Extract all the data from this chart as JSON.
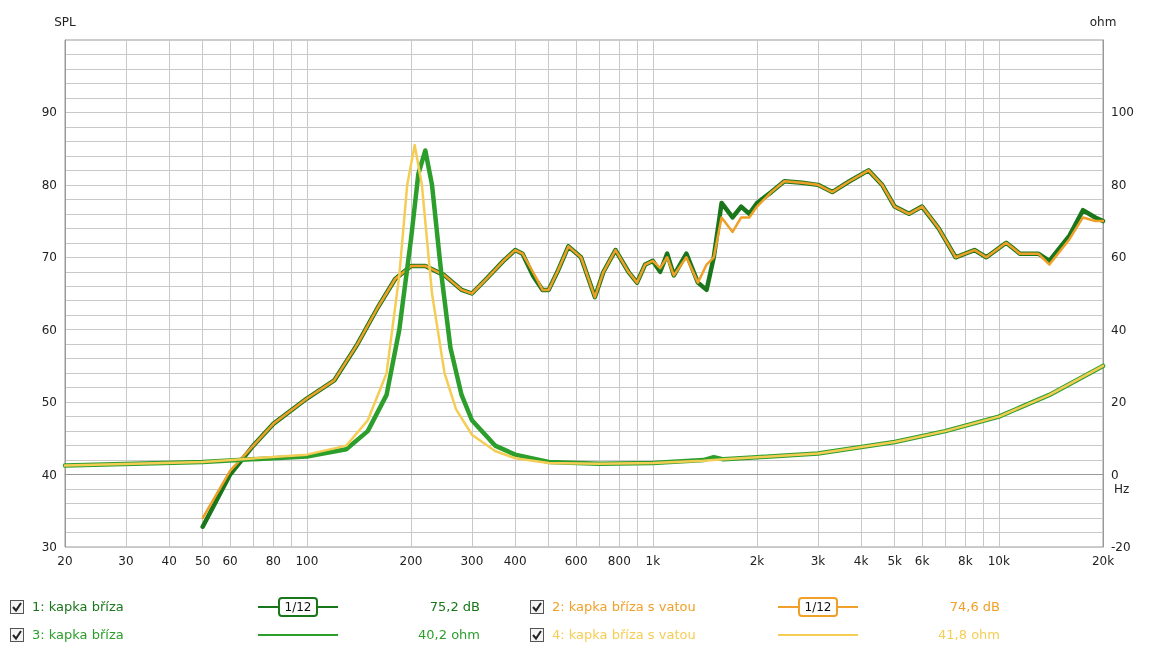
{
  "chart_data": {
    "type": "line",
    "xlabel": "Hz",
    "ylabel": "SPL",
    "y2label": "ohm",
    "xlim": [
      20,
      20000
    ],
    "xticks": [
      20,
      30,
      40,
      50,
      60,
      {
        "value": 70,
        "label": null
      },
      80,
      {
        "value": 90,
        "label": null
      },
      100,
      200,
      300,
      400,
      {
        "value": 500,
        "label": null
      },
      600,
      {
        "value": 700,
        "label": null
      },
      800,
      {
        "value": 900,
        "label": null
      },
      {
        "value": 1000,
        "label": "1k"
      },
      {
        "value": 2000,
        "label": "2k"
      },
      {
        "value": 3000,
        "label": "3k"
      },
      {
        "value": 4000,
        "label": "4k"
      },
      {
        "value": 5000,
        "label": "5k"
      },
      {
        "value": 6000,
        "label": "6k"
      },
      {
        "value": 7000,
        "label": null
      },
      {
        "value": 8000,
        "label": "8k"
      },
      {
        "value": 9000,
        "label": null
      },
      {
        "value": 10000,
        "label": "10k"
      },
      {
        "value": 20000,
        "label": "20k"
      }
    ],
    "ylim": [
      30,
      100
    ],
    "yticks": [
      30,
      {
        "value": 32,
        "label": null
      },
      {
        "value": 34,
        "label": null
      },
      {
        "value": 36,
        "label": null
      },
      {
        "value": 38,
        "label": null
      },
      40,
      {
        "value": 42,
        "label": null
      },
      {
        "value": 44,
        "label": null
      },
      {
        "value": 46,
        "label": null
      },
      {
        "value": 48,
        "label": null
      },
      50,
      {
        "value": 52,
        "label": null
      },
      {
        "value": 54,
        "label": null
      },
      {
        "value": 56,
        "label": null
      },
      {
        "value": 58,
        "label": null
      },
      60,
      {
        "value": 62,
        "label": null
      },
      {
        "value": 64,
        "label": null
      },
      {
        "value": 66,
        "label": null
      },
      {
        "value": 68,
        "label": null
      },
      70,
      {
        "value": 72,
        "label": null
      },
      {
        "value": 74,
        "label": null
      },
      {
        "value": 76,
        "label": null
      },
      {
        "value": 78,
        "label": null
      },
      80,
      {
        "value": 82,
        "label": null
      },
      {
        "value": 84,
        "label": null
      },
      {
        "value": 86,
        "label": null
      },
      {
        "value": 88,
        "label": null
      },
      90,
      {
        "value": 92,
        "label": null
      },
      {
        "value": 94,
        "label": null
      },
      {
        "value": 96,
        "label": null
      },
      {
        "value": 98,
        "label": null
      }
    ],
    "y2lim": [
      -20,
      120
    ],
    "y2ticks": [
      -20,
      0,
      20,
      40,
      60,
      80,
      100
    ],
    "log": "x",
    "grid": true,
    "marker": "none",
    "line_style": "solid",
    "legend": "bottom",
    "annotations": [
      "1/12",
      "75,2 dB",
      "1/12",
      "74,6 dB",
      "40,2 ohm",
      "41,8 ohm"
    ],
    "series": [
      {
        "name": "1: kapka bříza",
        "color": "#1a761a",
        "x": [
          50,
          60,
          70,
          80,
          100,
          120,
          140,
          160,
          180,
          200,
          220,
          250,
          280,
          300,
          330,
          370,
          400,
          420,
          450,
          480,
          500,
          530,
          570,
          620,
          680,
          720,
          780,
          850,
          900,
          950,
          1000,
          1050,
          1100,
          1150,
          1250,
          1350,
          1430,
          1500,
          1580,
          1700,
          1800,
          1900,
          2000,
          2200,
          2400,
          2700,
          3000,
          3300,
          3700,
          4200,
          4600,
          5000,
          5500,
          6000,
          6700,
          7500,
          8500,
          9200,
          10500,
          11500,
          13000,
          14000,
          16000,
          17500,
          19000,
          20000
        ],
        "values": [
          32.8,
          40,
          44,
          47,
          50.5,
          53,
          58,
          63,
          67,
          68.8,
          68.8,
          67.5,
          65.5,
          65,
          67,
          69.5,
          71,
          70.5,
          67.5,
          65.5,
          65.5,
          68,
          71.5,
          70,
          64.5,
          68,
          71,
          68,
          66.5,
          69,
          69.5,
          68,
          70.5,
          67.5,
          70.5,
          66.5,
          65.5,
          70,
          77.5,
          75.5,
          77,
          76,
          77.5,
          79,
          80.5,
          80.3,
          80,
          79,
          80.5,
          82,
          80,
          77,
          76,
          77,
          74,
          70,
          71,
          70,
          72,
          70.5,
          70.5,
          69.5,
          73,
          76.5,
          75.5,
          75
        ]
      },
      {
        "name": "2: kapka bříza s vatou",
        "color": "#f0a028",
        "x": [
          50,
          60,
          70,
          80,
          100,
          120,
          140,
          160,
          180,
          200,
          220,
          250,
          280,
          300,
          330,
          370,
          400,
          420,
          450,
          480,
          500,
          530,
          570,
          620,
          680,
          720,
          780,
          850,
          900,
          950,
          1000,
          1050,
          1100,
          1150,
          1250,
          1350,
          1430,
          1500,
          1580,
          1700,
          1800,
          1900,
          2000,
          2200,
          2400,
          2700,
          3000,
          3300,
          3700,
          4200,
          4600,
          5000,
          5500,
          6000,
          6700,
          7500,
          8500,
          9200,
          10500,
          11500,
          13000,
          14000,
          16000,
          17500,
          19000,
          20000
        ],
        "values": [
          34,
          40.5,
          44,
          47,
          50.5,
          53,
          58,
          63,
          67,
          68.8,
          68.8,
          67.5,
          65.5,
          65,
          67,
          69.5,
          71,
          70.5,
          68,
          65.5,
          65.5,
          68,
          71.5,
          70,
          64.5,
          68,
          71,
          68,
          66.5,
          69,
          69.5,
          68.5,
          70,
          67.5,
          70,
          66.5,
          69,
          70,
          75.5,
          73.5,
          75.5,
          75.5,
          77,
          79,
          80.5,
          80.3,
          80,
          79,
          80.5,
          82,
          80,
          77,
          76,
          77,
          74,
          70,
          71,
          70,
          72,
          70.5,
          70.5,
          69,
          72.5,
          75.5,
          75,
          75
        ]
      },
      {
        "name": "3: kapka bříza",
        "color": "#2c9e2c",
        "axis": "y2",
        "x": [
          20,
          50,
          100,
          130,
          150,
          170,
          185,
          200,
          210,
          220,
          230,
          245,
          260,
          280,
          300,
          350,
          400,
          500,
          700,
          1000,
          1400,
          1500,
          1600,
          2000,
          3000,
          5000,
          7000,
          10000,
          14000,
          20000
        ],
        "values": [
          2.5,
          3.5,
          5,
          7,
          12,
          22,
          40,
          65,
          83,
          89.5,
          80,
          55,
          35,
          22,
          15,
          8,
          5.5,
          3.5,
          3,
          3.2,
          4,
          4.8,
          4.2,
          4.8,
          5.8,
          9,
          12,
          16,
          22,
          30
        ]
      },
      {
        "name": "4: kapka bříza s vatou",
        "color": "#f5cd55",
        "axis": "y2",
        "x": [
          20,
          50,
          100,
          130,
          150,
          170,
          185,
          195,
          205,
          215,
          230,
          250,
          270,
          300,
          350,
          400,
          500,
          700,
          1000,
          1400,
          1600,
          2000,
          3000,
          5000,
          7000,
          10000,
          14000,
          20000
        ],
        "values": [
          2.5,
          3.5,
          5.5,
          8,
          15,
          28,
          55,
          80,
          91,
          80,
          50,
          28,
          18,
          11,
          6.5,
          4.5,
          3.2,
          3,
          3.2,
          3.8,
          4.2,
          4.8,
          5.8,
          9,
          12,
          16,
          22,
          30
        ]
      }
    ]
  }
}
